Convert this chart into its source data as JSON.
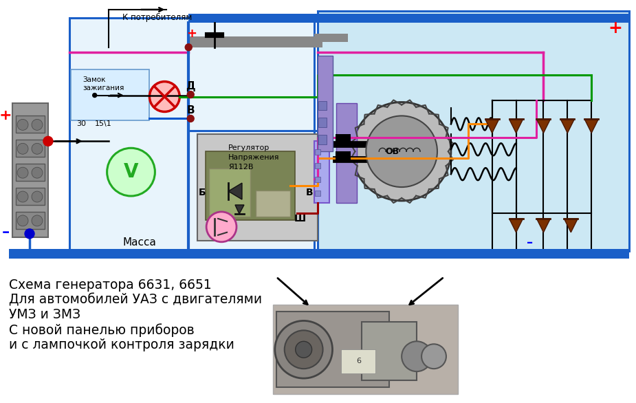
{
  "bg_color": "#ffffff",
  "generator_bg": "#cce8f4",
  "blue_border": "#1a5fc8",
  "text_lines": [
    "Схема генератора 6631, 6651",
    "Для автомобилей УАЗ с двигателями",
    "УМЗ и ЗМЗ",
    "С новой панелью приборов",
    "и с лампочкой контроля зарядки"
  ],
  "label_k_potrebitelyam": "К потребителям",
  "label_massa": "Масса",
  "label_zamok": "Замок\nзажигания",
  "label_d": "Д",
  "label_v": "В",
  "label_b": "Б",
  "label_v2": "В",
  "label_sh": "Ш",
  "label_regulator": "Регулятор\nНапряжения\nЯ112В",
  "label_ov": "ОВ",
  "label_plus": "+",
  "label_minus": "–",
  "label_30": "30",
  "label_151": "15\\1"
}
